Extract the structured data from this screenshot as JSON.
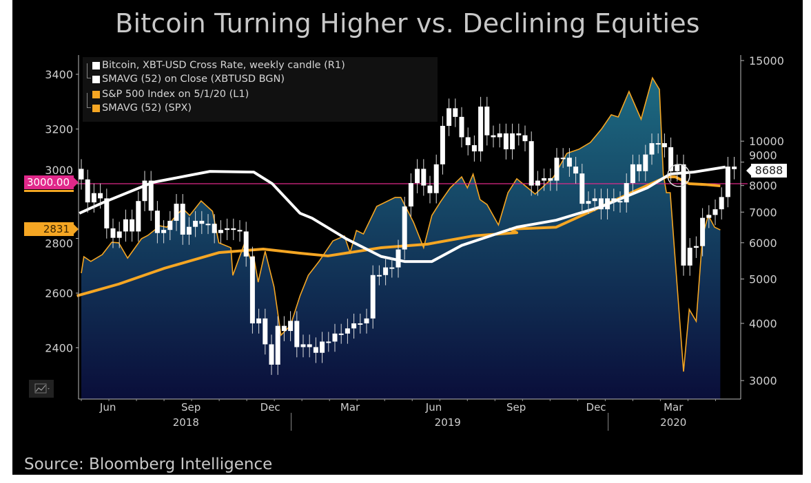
{
  "title": "Bitcoin Turning Higher vs. Declining Equities",
  "source": "Source: Bloomberg Intelligence",
  "legend": [
    {
      "label": "Bitcoin, XBT-USD Cross Rate, weekly candle (R1)",
      "color": "#ffffff"
    },
    {
      "label": "SMAVG (52)  on Close (XBTUSD BGN)",
      "color": "#ffffff"
    },
    {
      "label": "S&P 500 Index  on 5/1/20 (L1)",
      "color": "#f5a623"
    },
    {
      "label": "SMAVG (52) (SPX)",
      "color": "#f5a623"
    }
  ],
  "flags": {
    "reference": "3000.00",
    "spx_last": "2831",
    "btc_last": "8688"
  },
  "colors": {
    "spx": "#f5a623",
    "btc": "#ffffff",
    "reference": "#e0288a",
    "fill_top": "#1d6b82",
    "fill_bottom": "#0a0e3a"
  },
  "chart_data": {
    "type": "line",
    "title": "Bitcoin Turning Higher vs. Declining Equities",
    "x_unit": "weeks since mid-May 2018",
    "x_range": [
      0,
      104
    ],
    "x_ticks": [
      {
        "week": 4.2,
        "label": "Jun"
      },
      {
        "week": 17.3,
        "label": "Sep"
      },
      {
        "week": 29.8,
        "label": "Dec"
      },
      {
        "week": 42.4,
        "label": "Mar"
      },
      {
        "week": 55.6,
        "label": "Jun"
      },
      {
        "week": 68.6,
        "label": "Sep"
      },
      {
        "week": 81.2,
        "label": "Dec"
      },
      {
        "week": 93.4,
        "label": "Mar"
      }
    ],
    "year_labels": [
      {
        "week": 16.5,
        "label": "2018"
      },
      {
        "week": 57.8,
        "label": "2019"
      },
      {
        "week": 93.4,
        "label": "2020"
      }
    ],
    "left_axis": {
      "scale": "linear",
      "range": [
        2260,
        3550
      ],
      "ticks": [
        2400,
        2600,
        2800,
        3000,
        3200,
        3400
      ]
    },
    "right_axis": {
      "scale": "log",
      "range": [
        2700,
        16500
      ],
      "ticks": [
        3000,
        4000,
        5000,
        6000,
        7000,
        8000,
        9000,
        10000,
        15000
      ]
    },
    "reference_line": {
      "axis": "left",
      "value": 3000
    },
    "spx": [
      [
        0,
        2673
      ],
      [
        0.4,
        2733
      ],
      [
        1.5,
        2716
      ],
      [
        3.3,
        2741
      ],
      [
        4.8,
        2786
      ],
      [
        5.9,
        2784
      ],
      [
        7.3,
        2728
      ],
      [
        9.5,
        2799
      ],
      [
        10.5,
        2811
      ],
      [
        12.4,
        2846
      ],
      [
        13.5,
        2841
      ],
      [
        14.6,
        2874
      ],
      [
        16,
        2909
      ],
      [
        17.1,
        2884
      ],
      [
        18.9,
        2937
      ],
      [
        20.7,
        2899
      ],
      [
        21.7,
        2784
      ],
      [
        23.6,
        2766
      ],
      [
        23.9,
        2665
      ],
      [
        25.8,
        2786
      ],
      [
        26.8,
        2716
      ],
      [
        27.2,
        2733
      ],
      [
        27.9,
        2640
      ],
      [
        29,
        2753
      ],
      [
        30.4,
        2623
      ],
      [
        31.5,
        2446
      ],
      [
        33,
        2482
      ],
      [
        34.5,
        2590
      ],
      [
        35.8,
        2665
      ],
      [
        37.5,
        2716
      ],
      [
        39.7,
        2791
      ],
      [
        41.5,
        2809
      ],
      [
        42.4,
        2748
      ],
      [
        43.4,
        2829
      ],
      [
        44.5,
        2816
      ],
      [
        46.6,
        2917
      ],
      [
        49.5,
        2950
      ],
      [
        50.4,
        2950
      ],
      [
        52.4,
        2859
      ],
      [
        54,
        2766
      ],
      [
        55.3,
        2884
      ],
      [
        56.7,
        2935
      ],
      [
        58.2,
        2985
      ],
      [
        60,
        3025
      ],
      [
        60.9,
        2985
      ],
      [
        61.8,
        3035
      ],
      [
        62.9,
        2942
      ],
      [
        64,
        2924
      ],
      [
        65.8,
        2849
      ],
      [
        67.3,
        2967
      ],
      [
        68.7,
        3018
      ],
      [
        71.6,
        2962
      ],
      [
        74.5,
        3025
      ],
      [
        76.6,
        3111
      ],
      [
        78.5,
        3126
      ],
      [
        80.3,
        3151
      ],
      [
        82.1,
        3201
      ],
      [
        83.6,
        3252
      ],
      [
        84.7,
        3244
      ],
      [
        86.4,
        3337
      ],
      [
        88.3,
        3236
      ],
      [
        90.1,
        3387
      ],
      [
        91.2,
        3345
      ],
      [
        91.8,
        3035
      ],
      [
        92.3,
        2967
      ],
      [
        92.9,
        2967
      ],
      [
        95,
        2313
      ],
      [
        95.9,
        2540
      ],
      [
        97,
        2497
      ],
      [
        98,
        2809
      ],
      [
        98.9,
        2884
      ],
      [
        99.9,
        2841
      ],
      [
        100.8,
        2831
      ]
    ],
    "spx_sma52": [
      [
        -0.7,
        2590
      ],
      [
        5.9,
        2633
      ],
      [
        13,
        2690
      ],
      [
        21.7,
        2748
      ],
      [
        28.7,
        2761
      ],
      [
        34.5,
        2746
      ],
      [
        38.9,
        2736
      ],
      [
        47.3,
        2766
      ],
      [
        54.6,
        2779
      ],
      [
        61.8,
        2809
      ],
      [
        68.7,
        2821
      ],
      [
        67.6,
        2834
      ],
      [
        74.9,
        2841
      ],
      [
        82.1,
        2917
      ],
      [
        87.5,
        2975
      ],
      [
        92.3,
        3025
      ],
      [
        93.7,
        3025
      ],
      [
        95.9,
        3000
      ],
      [
        98.4,
        2997
      ],
      [
        100.8,
        2992
      ]
    ],
    "btc_sma52": [
      [
        -0.3,
        6960
      ],
      [
        3.3,
        7330
      ],
      [
        11.3,
        8130
      ],
      [
        20.3,
        8590
      ],
      [
        27.2,
        8560
      ],
      [
        30.1,
        8080
      ],
      [
        34.5,
        6960
      ],
      [
        36.4,
        6790
      ],
      [
        41.8,
        6120
      ],
      [
        47.3,
        5600
      ],
      [
        51,
        5460
      ],
      [
        55.3,
        5460
      ],
      [
        60,
        5920
      ],
      [
        65.4,
        6270
      ],
      [
        68.7,
        6490
      ],
      [
        74.9,
        6720
      ],
      [
        82.1,
        7200
      ],
      [
        89.3,
        7910
      ],
      [
        92.9,
        8480
      ],
      [
        96.6,
        8560
      ],
      [
        101.6,
        8780
      ]
    ],
    "btc_weekly_close": [
      8250,
      7350,
      7700,
      7500,
      6450,
      6150,
      6350,
      6750,
      6350,
      7400,
      8200,
      7050,
      6300,
      6400,
      6700,
      7300,
      6250,
      6500,
      6700,
      6600,
      6600,
      6300,
      6400,
      6450,
      6400,
      6350,
      5600,
      4000,
      4100,
      3600,
      3250,
      3950,
      3850,
      4050,
      3550,
      3600,
      3550,
      3450,
      3650,
      3650,
      3800,
      3800,
      3900,
      4000,
      4000,
      4100,
      5100,
      5100,
      5300,
      5300,
      5800,
      7200,
      8100,
      8700,
      8000,
      7700,
      8900,
      10800,
      11800,
      11300,
      10200,
      9800,
      9500,
      11900,
      10300,
      10200,
      10400,
      9600,
      10400,
      10300,
      10000,
      8000,
      8200,
      8300,
      8200,
      9200,
      9200,
      8800,
      8500,
      7300,
      7400,
      7500,
      7100,
      7500,
      7400,
      7350,
      8100,
      8900,
      8600,
      9350,
      9900,
      9900,
      9700,
      8600,
      8900,
      5350,
      5850,
      5900,
      6800,
      6900,
      7100,
      7550,
      8800,
      8688
    ],
    "btc_first_open": 8700
  }
}
